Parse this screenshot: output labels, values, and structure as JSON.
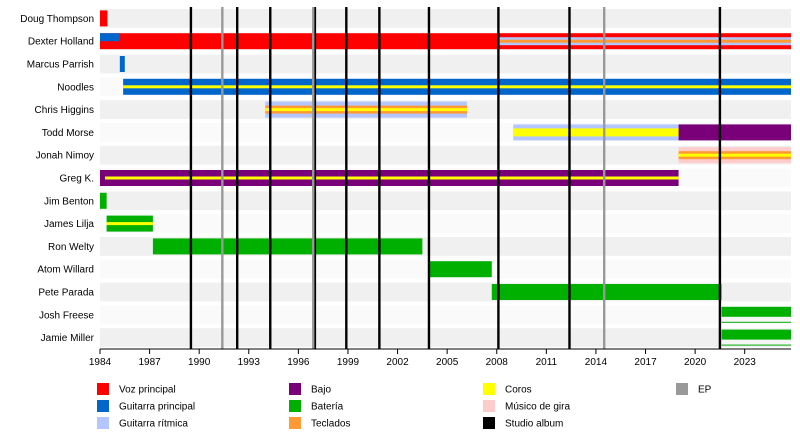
{
  "chart_data": {
    "type": "timeline",
    "x_range": [
      1984,
      2025.8
    ],
    "ticks": [
      1984,
      1987,
      1990,
      1993,
      1996,
      1999,
      2002,
      2005,
      2008,
      2011,
      2014,
      2017,
      2020,
      2023
    ],
    "colors": {
      "vocals": "#ff0000",
      "lead_guitar": "#0066cc",
      "rhythm_guitar": "#b3c6ff",
      "bass": "#7a007a",
      "drums": "#00b000",
      "keyboards": "#ff9933",
      "backing_vocals": "#ffff00",
      "touring": "#ffcccc",
      "studio": "#000000",
      "ep": "#999999"
    },
    "members": [
      {
        "name": "Doug Thompson",
        "bars": [
          {
            "start": 1984,
            "end": 1984.45,
            "role": "vocals"
          }
        ]
      },
      {
        "name": "Dexter Holland",
        "bars": [
          {
            "start": 1984,
            "end": 2025.8,
            "role": "vocals"
          },
          {
            "start": 1984,
            "end": 1985.2,
            "role": "lead_guitar",
            "inset": "top"
          },
          {
            "start": 2008.1,
            "end": 2025.8,
            "role": "rhythm_guitar",
            "inset": "center"
          },
          {
            "start": 2008.1,
            "end": 2025.8,
            "role": "keyboards",
            "inset": "stripe"
          }
        ]
      },
      {
        "name": "Marcus Parrish",
        "bars": [
          {
            "start": 1985.2,
            "end": 1985.5,
            "role": "lead_guitar"
          }
        ]
      },
      {
        "name": "Noodles",
        "bars": [
          {
            "start": 1985.4,
            "end": 2025.8,
            "role": "lead_guitar"
          },
          {
            "start": 1985.4,
            "end": 2025.8,
            "role": "backing_vocals",
            "inset": "stripe"
          }
        ]
      },
      {
        "name": "Chris Higgins",
        "bars": [
          {
            "start": 1994,
            "end": 2006.2,
            "role": "rhythm_guitar"
          },
          {
            "start": 1994,
            "end": 2006.2,
            "role": "keyboards",
            "inset": "center"
          },
          {
            "start": 1994,
            "end": 2006.2,
            "role": "backing_vocals",
            "inset": "stripe"
          }
        ]
      },
      {
        "name": "Todd Morse",
        "bars": [
          {
            "start": 2009,
            "end": 2019,
            "role": "rhythm_guitar"
          },
          {
            "start": 2009,
            "end": 2019,
            "role": "backing_vocals",
            "inset": "center"
          },
          {
            "start": 2019,
            "end": 2025.8,
            "role": "bass"
          }
        ]
      },
      {
        "name": "Jonah Nimoy",
        "bars": [
          {
            "start": 2019,
            "end": 2025.8,
            "role": "touring"
          },
          {
            "start": 2019,
            "end": 2025.8,
            "role": "keyboards",
            "inset": "center"
          },
          {
            "start": 2019,
            "end": 2025.8,
            "role": "backing_vocals",
            "inset": "stripe"
          }
        ]
      },
      {
        "name": "Greg K.",
        "bars": [
          {
            "start": 1984,
            "end": 2019,
            "role": "bass"
          },
          {
            "start": 1984.3,
            "end": 2019,
            "role": "backing_vocals",
            "inset": "stripe"
          }
        ]
      },
      {
        "name": "Jim Benton",
        "bars": [
          {
            "start": 1984,
            "end": 1984.4,
            "role": "drums"
          }
        ]
      },
      {
        "name": "James Lilja",
        "bars": [
          {
            "start": 1984.4,
            "end": 1987.2,
            "role": "drums"
          },
          {
            "start": 1984.4,
            "end": 1987.2,
            "role": "backing_vocals",
            "inset": "stripe"
          }
        ]
      },
      {
        "name": "Ron Welty",
        "bars": [
          {
            "start": 1987.2,
            "end": 2003.5,
            "role": "drums"
          }
        ]
      },
      {
        "name": "Atom Willard",
        "bars": [
          {
            "start": 2003.9,
            "end": 2007.7,
            "role": "drums"
          }
        ]
      },
      {
        "name": "Pete Parada",
        "bars": [
          {
            "start": 2007.7,
            "end": 2021.6,
            "role": "drums"
          }
        ]
      },
      {
        "name": "Josh Freese",
        "bars": [
          {
            "start": 2021.6,
            "end": 2025.8,
            "role": "drums"
          },
          {
            "start": 2021.6,
            "end": 2025.8,
            "role": "drums",
            "inset": "lower"
          }
        ]
      },
      {
        "name": "Jamie Miller",
        "bars": [
          {
            "start": 2021.6,
            "end": 2025.8,
            "role": "drums"
          },
          {
            "start": 2021.6,
            "end": 2025.8,
            "role": "drums",
            "inset": "lower"
          }
        ]
      }
    ],
    "studio_albums": [
      1989.5,
      1992.3,
      1994.3,
      1997.0,
      1998.9,
      2000.9,
      2003.9,
      2008.1,
      2012.4,
      2021.5
    ],
    "eps": [
      1991.4,
      1996.9,
      2014.5
    ],
    "legend": [
      {
        "label": "Voz principal",
        "role": "vocals"
      },
      {
        "label": "Guitarra principal",
        "role": "lead_guitar"
      },
      {
        "label": "Guitarra rítmica",
        "role": "rhythm_guitar"
      },
      {
        "label": "Bajo",
        "role": "bass"
      },
      {
        "label": "Batería",
        "role": "drums"
      },
      {
        "label": "Teclados",
        "role": "keyboards"
      },
      {
        "label": "Coros",
        "role": "backing_vocals"
      },
      {
        "label": "Músico de gira",
        "role": "touring"
      },
      {
        "label": "Studio album",
        "role": "studio"
      },
      {
        "label": "EP",
        "role": "ep"
      }
    ]
  }
}
